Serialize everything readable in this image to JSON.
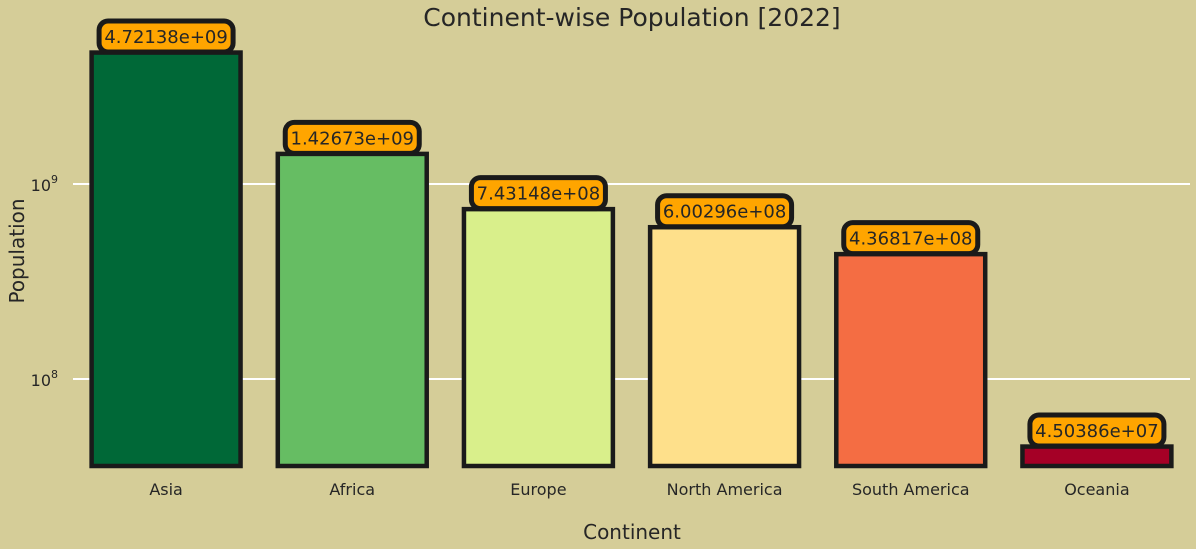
{
  "background": "#d5cd98",
  "chart_data": {
    "type": "bar",
    "title": "Continent-wise Population [2022]",
    "xlabel": "Continent",
    "ylabel": "Population",
    "yscale": "log",
    "ylim": [
      36000000,
      6000000000
    ],
    "grid": "y-major",
    "categories": [
      "Asia",
      "Africa",
      "Europe",
      "North America",
      "South America",
      "Oceania"
    ],
    "values": [
      4721380000,
      1426730000,
      743148000,
      600296000,
      436817000,
      45038600
    ],
    "data_labels": [
      "4.72138e+09",
      "1.42673e+09",
      "7.43148e+08",
      "6.00296e+08",
      "4.36817e+08",
      "4.50386e+07"
    ],
    "colors": [
      "#006837",
      "#66bd63",
      "#d9ef8b",
      "#fee08b",
      "#f46d43",
      "#a50026"
    ],
    "label_box_color": "#ffa500",
    "edge_color": "#1a1a1a",
    "y_ticks": [
      {
        "value": 100000000,
        "base": "10",
        "exp": "8"
      },
      {
        "value": 1000000000,
        "base": "10",
        "exp": "9"
      }
    ]
  }
}
